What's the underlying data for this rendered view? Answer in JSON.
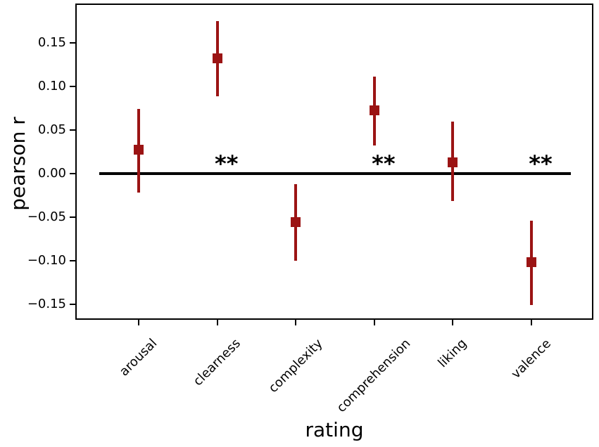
{
  "chart_data": {
    "type": "scatter",
    "subtype": "pointplot-with-error-bars",
    "title": "",
    "xlabel": "rating",
    "ylabel": "pearson r",
    "categories": [
      "arousal",
      "clearness",
      "complexity",
      "comprehension",
      "liking",
      "valence"
    ],
    "series": [
      {
        "name": "pearson r",
        "values": [
          0.027,
          0.132,
          -0.056,
          0.072,
          0.013,
          -0.102
        ],
        "ci_low": [
          -0.022,
          0.088,
          -0.1,
          0.032,
          -0.032,
          -0.151
        ],
        "ci_high": [
          0.074,
          0.175,
          -0.012,
          0.111,
          0.059,
          -0.054
        ]
      }
    ],
    "significance": [
      "",
      "**",
      "",
      "**",
      "",
      "**"
    ],
    "yticks": [
      0.15,
      0.1,
      0.05,
      0.0,
      -0.05,
      -0.1,
      -0.15
    ],
    "ylim": [
      -0.168,
      0.194
    ],
    "xlim": [
      -0.8,
      5.78
    ],
    "zero_line": {
      "present": true,
      "x_start": -0.5,
      "x_end": 5.5
    },
    "grid": false,
    "legend": "none",
    "marker_color": "#9b1414",
    "error_bar_color": "#9b1414",
    "axis_color": "#000000",
    "background_color": "#ffffff"
  }
}
